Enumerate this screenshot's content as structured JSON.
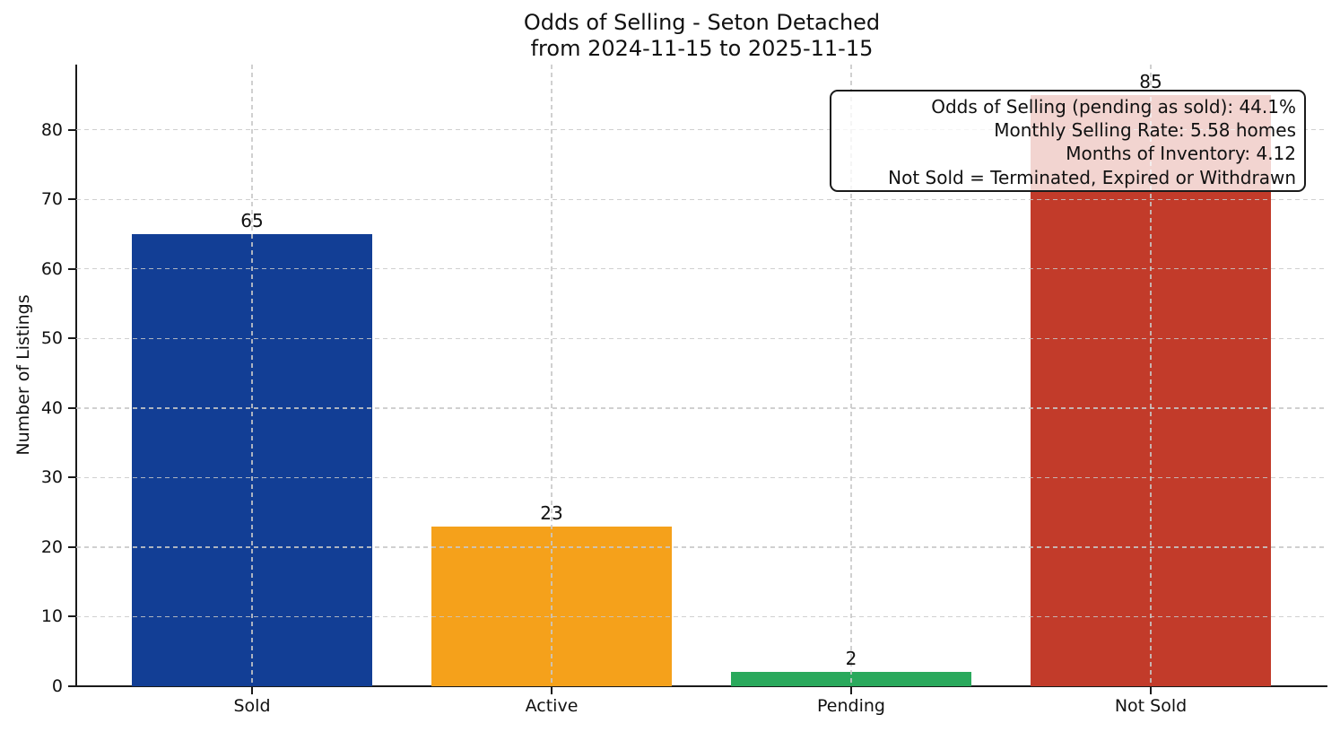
{
  "chart_data": {
    "type": "bar",
    "title": "Odds of Selling - Seton Detached",
    "subtitle": "from 2024-11-15 to 2025-11-15",
    "ylabel": "Number of Listings",
    "xlabel": "",
    "categories": [
      "Sold",
      "Active",
      "Pending",
      "Not Sold"
    ],
    "values": [
      65,
      23,
      2,
      85
    ],
    "value_labels": [
      "65",
      "23",
      "2",
      "85"
    ],
    "bar_colors": [
      "#123e95",
      "#f5a11b",
      "#2aa95c",
      "#c23b2a"
    ],
    "yticks": [
      0,
      10,
      20,
      30,
      40,
      50,
      60,
      70,
      80
    ],
    "ylim": [
      0,
      89.4
    ],
    "grid": true,
    "grid_style": "dashed, both horizontal and vertical, drawn above bars",
    "legend_position": "none",
    "annotation": {
      "lines": [
        "Odds of Selling (pending as sold): 44.1%",
        "Monthly Selling Rate: 5.58 homes",
        "Months of Inventory: 4.12",
        "Not Sold = Terminated, Expired or Withdrawn"
      ]
    }
  }
}
